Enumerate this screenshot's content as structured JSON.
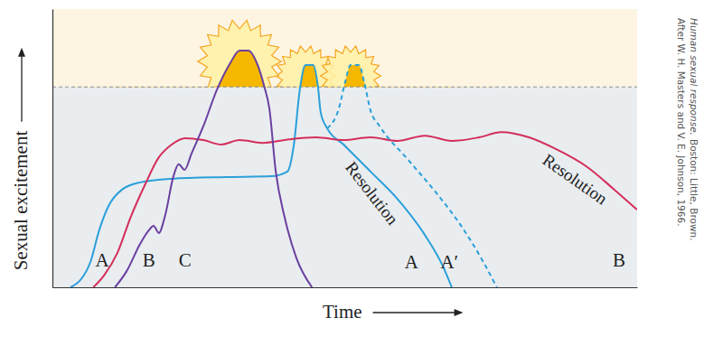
{
  "chart_data": {
    "type": "line",
    "xlabel": "Time",
    "ylabel": "Sexual excitement",
    "xlim": [
      0,
      100
    ],
    "ylim": [
      0,
      100
    ],
    "xticks": [],
    "yticks": [],
    "tick_labels": false,
    "grid": false,
    "threshold": 72,
    "series": [
      {
        "color": "#2b9fd9",
        "line_style": "solid",
        "x": [
          3.1,
          4.8,
          6.5,
          8.0,
          9.6,
          11.9,
          15.0,
          20.4,
          29.7,
          37.4,
          40.2,
          41.3,
          42.3,
          43.3,
          44.6,
          45.4,
          45.9,
          47.0,
          49.8,
          54.4,
          59.0,
          63.7,
          66.8,
          68.3
        ],
        "values": [
          0,
          2.6,
          9.1,
          20.5,
          29.2,
          35.1,
          37.7,
          39.0,
          39.6,
          39.9,
          41.6,
          51.3,
          70.8,
          79.9,
          79.9,
          72.4,
          62.7,
          57.1,
          51.3,
          41.6,
          31.8,
          18.8,
          7.5,
          0
        ]
      },
      {
        "color": "#d42e5b",
        "line_style": "solid",
        "x": [
          7.0,
          8.8,
          11.1,
          13.4,
          15.8,
          18.1,
          20.4,
          22.7,
          25.8,
          28.9,
          32.0,
          35.9,
          40.5,
          45.1,
          49.8,
          54.4,
          59.0,
          63.7,
          68.3,
          73.0,
          76.8,
          81.5,
          86.1,
          91.5,
          96.1,
          100
        ],
        "values": [
          0,
          4.2,
          12.3,
          25.3,
          36.7,
          46.4,
          51.3,
          53.6,
          52.9,
          51.3,
          52.9,
          51.9,
          53.2,
          53.9,
          52.9,
          53.9,
          52.6,
          54.5,
          52.6,
          53.9,
          55.8,
          53.9,
          49.7,
          43.2,
          35.1,
          27.9
        ]
      },
      {
        "color": "#6b3fa0",
        "line_style": "solid",
        "x": [
          10.7,
          12.7,
          15.0,
          16.5,
          17.3,
          18.2,
          19.3,
          20.7,
          21.6,
          22.6,
          23.8,
          25.8,
          28.1,
          30.4,
          32.0,
          33.5,
          35.1,
          36.2,
          37.1,
          38.2,
          39.7,
          41.7,
          44.4
        ],
        "values": [
          0,
          5.8,
          15.6,
          20.5,
          22.1,
          19.5,
          26.0,
          39.9,
          44.2,
          42.2,
          48.1,
          57.8,
          70.8,
          80.5,
          85.1,
          85.1,
          79.9,
          72.4,
          64.3,
          41.6,
          25.3,
          10.7,
          0
        ]
      },
      {
        "color": "#2b9fd9",
        "line_style": "dashed",
        "x": [
          47.0,
          49.0,
          50.1,
          51.0,
          52.4,
          53.3,
          54.4,
          56.0,
          60.6,
          65.2,
          69.9,
          73.7,
          76.0
        ],
        "values": [
          57.1,
          64.3,
          74.0,
          79.9,
          79.9,
          74.0,
          63.6,
          57.8,
          46.4,
          35.1,
          22.1,
          9.1,
          0
        ]
      }
    ],
    "annotations": [
      {
        "text": "A",
        "x": 8.5,
        "y": 9.1
      },
      {
        "text": "B",
        "x": 16.5,
        "y": 9.1
      },
      {
        "text": "C",
        "x": 22.7,
        "y": 9.1
      },
      {
        "text": "Resolution",
        "x": 54.4,
        "y": 33.4
      },
      {
        "text": "A",
        "x": 61.4,
        "y": 8.4
      },
      {
        "text": "A′",
        "x": 67.9,
        "y": 8.4
      },
      {
        "text": "Resolution",
        "x": 89.2,
        "y": 38.3
      },
      {
        "text": "B",
        "x": 96.9,
        "y": 9.1
      }
    ],
    "source": [
      "After W. H. Masters and V. E. Johnson, 1966.",
      "Human sexual response.",
      "Boston: Little, Brown."
    ]
  }
}
